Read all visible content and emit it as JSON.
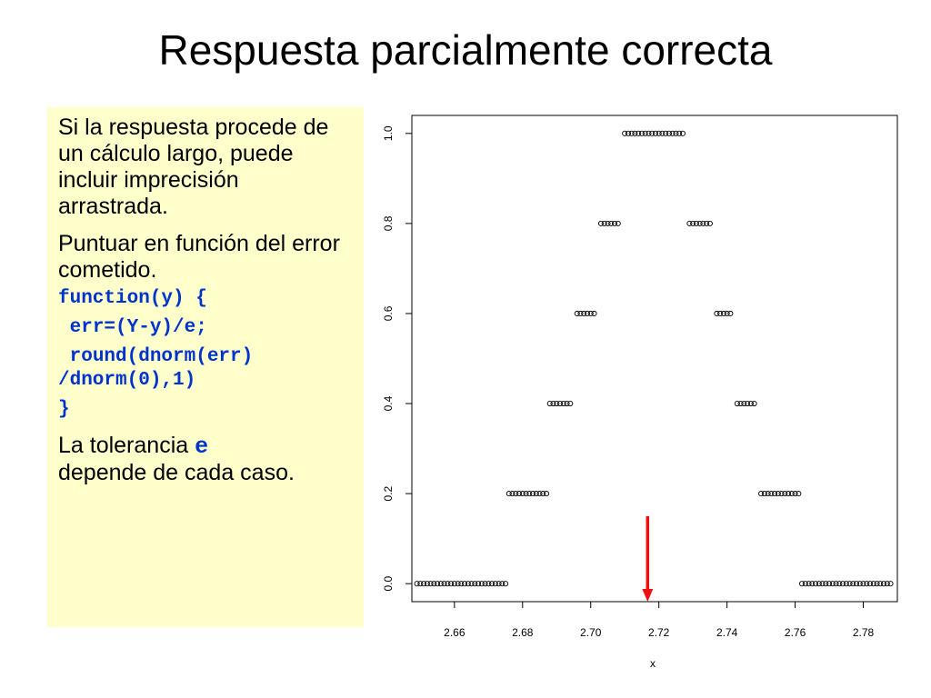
{
  "slide": {
    "title": "Respuesta parcialmente correcta"
  },
  "panel": {
    "para1": "Si la respuesta procede de un cálculo largo, puede incluir imprecisión arrastrada.",
    "para2": "Puntuar en función del error cometido.",
    "code_line1": "function(y) {",
    "code_line2": " err=(Y-y)/e;",
    "code_line3": " round(dnorm(err)\n/dnorm(0),1)",
    "code_line4": "}",
    "para3_text": "La tolerancia ",
    "para3_code": "e",
    "para3_rest": "depende de cada caso.",
    "panel_color": "#ffffcc",
    "code_color": "#0033cc"
  },
  "chart_data": {
    "type": "scatter",
    "xlabel": "x",
    "ylabel": "",
    "xlim": [
      2.6475,
      2.79
    ],
    "ylim": [
      -0.04,
      1.04
    ],
    "xticks": [
      2.66,
      2.68,
      2.7,
      2.72,
      2.74,
      2.76,
      2.78
    ],
    "xtick_labels": [
      "2.66",
      "2.68",
      "2.70",
      "2.72",
      "2.74",
      "2.76",
      "2.78"
    ],
    "yticks": [
      0.0,
      0.2,
      0.4,
      0.6,
      0.8,
      1.0
    ],
    "ytick_labels": [
      "0.0",
      "0.2",
      "0.4",
      "0.6",
      "0.8",
      "1.0"
    ],
    "marker": "open-circle",
    "point_groups": [
      {
        "y": 0.0,
        "x_from": 2.649,
        "x_to": 2.675,
        "step": 0.001
      },
      {
        "y": 0.2,
        "x_from": 2.676,
        "x_to": 2.687,
        "step": 0.001
      },
      {
        "y": 0.4,
        "x_from": 2.688,
        "x_to": 2.694,
        "step": 0.001
      },
      {
        "y": 0.6,
        "x_from": 2.696,
        "x_to": 2.701,
        "step": 0.001
      },
      {
        "y": 0.8,
        "x_from": 2.703,
        "x_to": 2.708,
        "step": 0.001
      },
      {
        "y": 1.0,
        "x_from": 2.71,
        "x_to": 2.727,
        "step": 0.001
      },
      {
        "y": 0.8,
        "x_from": 2.729,
        "x_to": 2.735,
        "step": 0.001
      },
      {
        "y": 0.6,
        "x_from": 2.737,
        "x_to": 2.741,
        "step": 0.001
      },
      {
        "y": 0.4,
        "x_from": 2.743,
        "x_to": 2.748,
        "step": 0.001
      },
      {
        "y": 0.2,
        "x_from": 2.75,
        "x_to": 2.761,
        "step": 0.001
      },
      {
        "y": 0.0,
        "x_from": 2.762,
        "x_to": 2.788,
        "step": 0.001
      }
    ],
    "annotation": {
      "type": "arrow",
      "color": "#ee1111",
      "x": 2.7167,
      "y_from": 0.15,
      "y_to": -0.04
    }
  }
}
